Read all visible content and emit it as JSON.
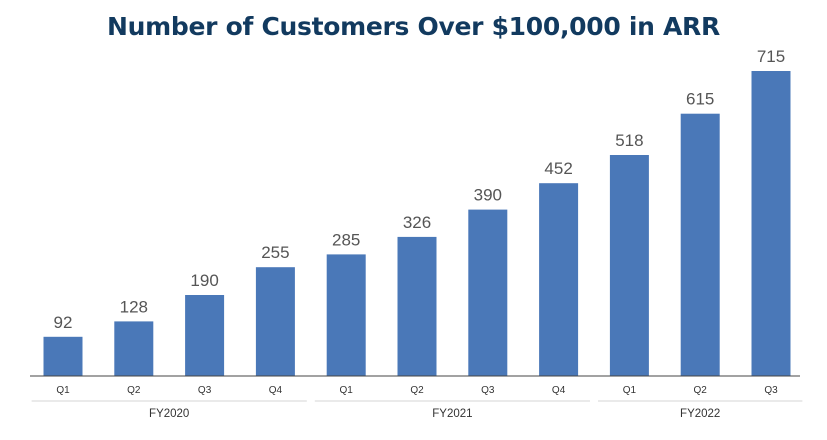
{
  "chart_data": {
    "type": "bar",
    "title": "Number of Customers Over $100,000 in ARR",
    "categories": [
      "Q1",
      "Q2",
      "Q3",
      "Q4",
      "Q1",
      "Q2",
      "Q3",
      "Q4",
      "Q1",
      "Q2",
      "Q3"
    ],
    "groups": [
      {
        "label": "FY2020",
        "start": 0,
        "end": 3
      },
      {
        "label": "FY2021",
        "start": 4,
        "end": 7
      },
      {
        "label": "FY2022",
        "start": 8,
        "end": 10
      }
    ],
    "values": [
      92,
      128,
      190,
      255,
      285,
      326,
      390,
      452,
      518,
      615,
      715
    ],
    "bar_color": "#4a78b8",
    "xlabel": "",
    "ylabel": "",
    "ylim": [
      0,
      715
    ],
    "grid": false
  }
}
